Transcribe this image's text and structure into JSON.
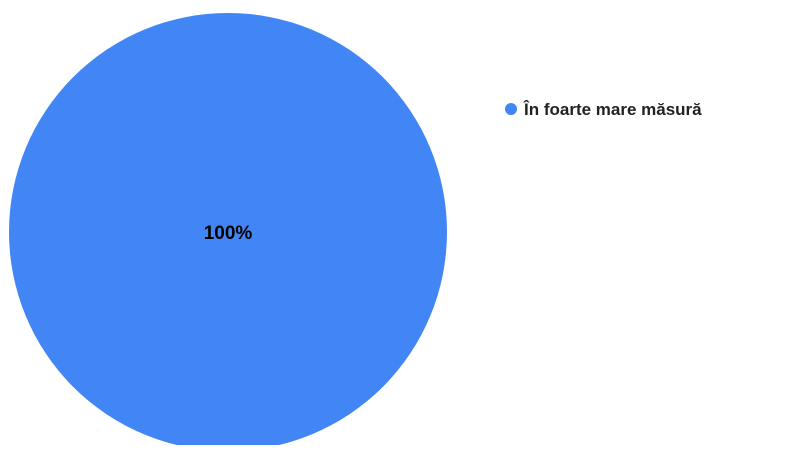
{
  "chart_data": {
    "type": "pie",
    "slices": [
      {
        "label": "În foarte mare măsură",
        "value": 100,
        "percent_label": "100%"
      }
    ],
    "legend": {
      "position": "right",
      "entries": [
        "În foarte mare măsură"
      ]
    },
    "colors": {
      "slice": "#4285f4",
      "text": "#000000",
      "background": "#ffffff"
    }
  }
}
